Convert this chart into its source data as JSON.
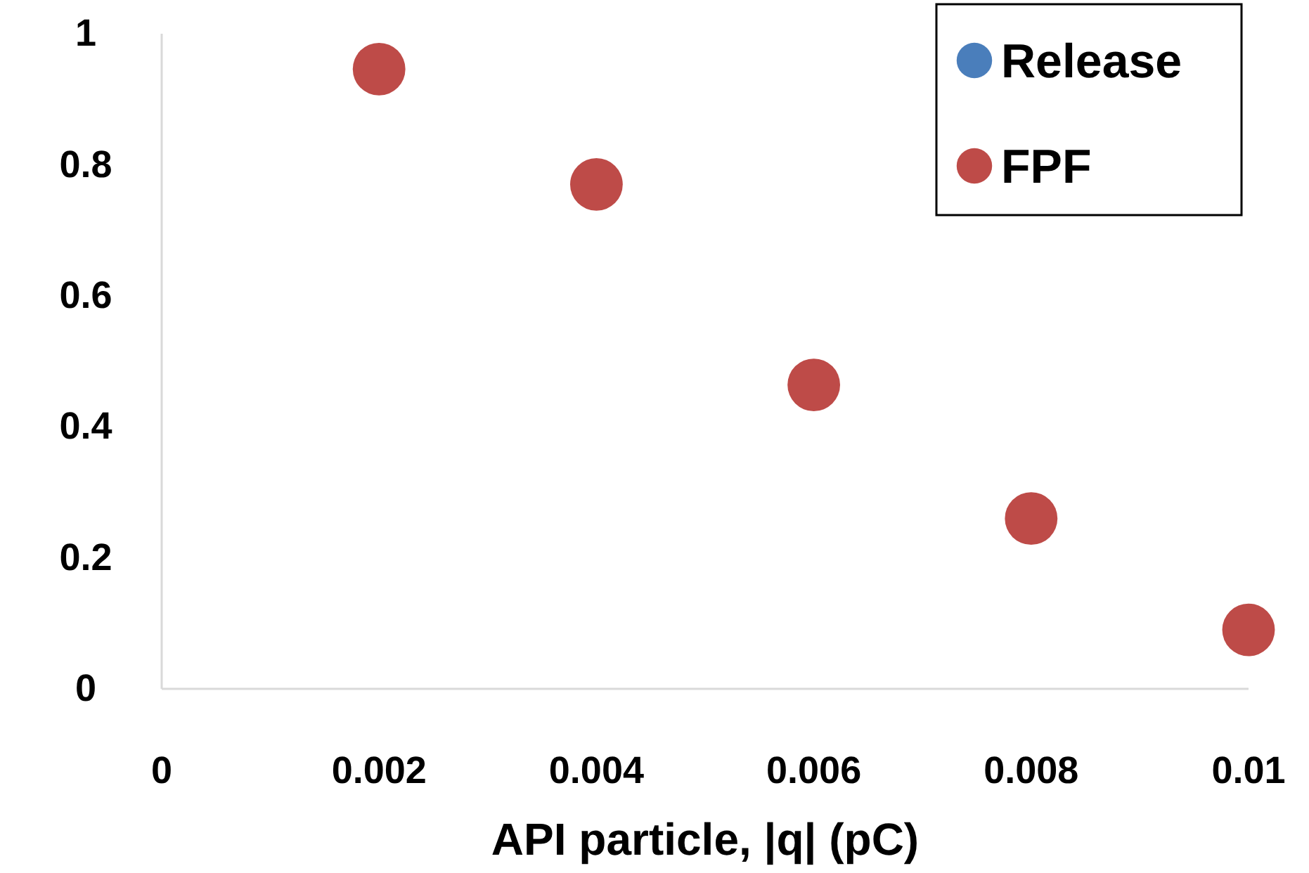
{
  "chart_data": {
    "type": "scatter",
    "xlabel": "API particle, |q| (pC)",
    "x": [
      0.002,
      0.004,
      0.006,
      0.008,
      0.01
    ],
    "series": [
      {
        "name": "Release",
        "color": "#4a7ebb",
        "values": [
          null,
          null,
          null,
          null,
          null
        ]
      },
      {
        "name": "FPF",
        "color": "#be4b48",
        "values": [
          0.946,
          0.77,
          0.464,
          0.26,
          0.09
        ]
      }
    ],
    "xlim": [
      0,
      0.01
    ],
    "xticks": [
      0,
      0.002,
      0.004,
      0.006,
      0.008,
      0.01
    ],
    "ylim": [
      0,
      1
    ],
    "yticks": [
      0,
      0.2,
      0.4,
      0.6,
      0.8,
      1
    ],
    "grid": false,
    "legend": "top right",
    "marker": "circle"
  }
}
